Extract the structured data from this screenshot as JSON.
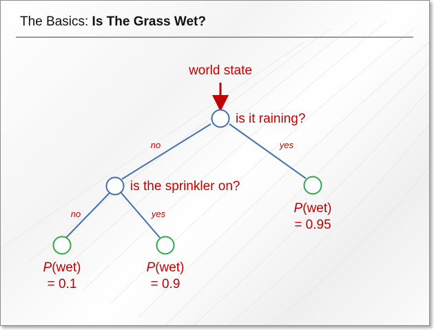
{
  "title": {
    "prefix": "The Basics:",
    "main": "Is The Grass Wet?"
  },
  "diagram": {
    "input_label": "world state",
    "root_question": "is it raining?",
    "sprinkler_question": "is the sprinkler on?",
    "edges": {
      "root_no": "no",
      "root_yes": "yes",
      "sprinkler_no": "no",
      "sprinkler_yes": "yes"
    },
    "leaves": [
      {
        "p": "P",
        "rest": "(wet)",
        "value": "= 0.1"
      },
      {
        "p": "P",
        "rest": "(wet)",
        "value": "= 0.9"
      },
      {
        "p": "P",
        "rest": "(wet)",
        "value": "= 0.95"
      }
    ]
  },
  "colors": {
    "label": "#c00000",
    "edge": "#3f6fb0",
    "decision_node": "#3f6fb0",
    "leaf_node": "#2ea84a"
  }
}
